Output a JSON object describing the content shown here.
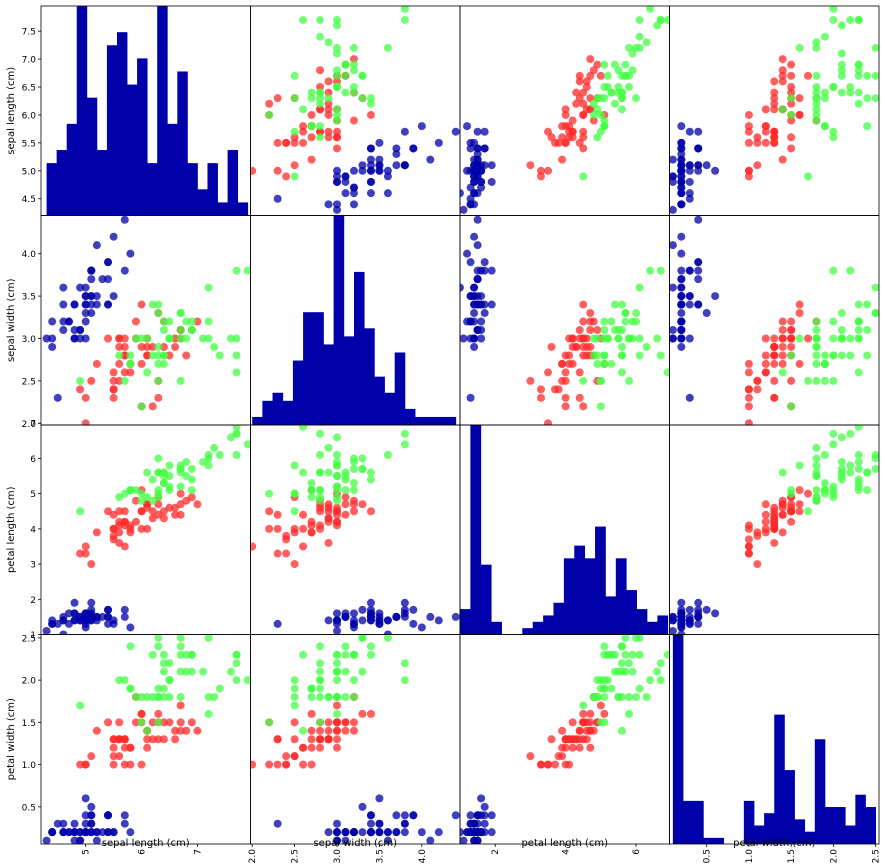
{
  "chart_data": {
    "type": "scatter",
    "title": "",
    "variables": [
      "sepal length (cm)",
      "sepal width (cm)",
      "petal length (cm)",
      "petal width (cm)"
    ],
    "class_colors": [
      "#0000aa",
      "#ff2a2a",
      "#44ff44"
    ],
    "hist_color": "#0000aa",
    "ranges": [
      [
        4.2,
        7.95
      ],
      [
        1.98,
        4.45
      ],
      [
        1.0,
        6.95
      ],
      [
        0.06,
        2.54
      ]
    ],
    "ticks": [
      [
        4.5,
        5.0,
        5.5,
        6.0,
        6.5,
        7.0,
        7.5
      ],
      [
        2.0,
        2.5,
        3.0,
        3.5,
        4.0
      ],
      [
        1,
        2,
        3,
        4,
        5,
        6,
        7
      ],
      [
        0.5,
        1.0,
        1.5,
        2.0,
        2.5
      ]
    ],
    "x_tick_labels": [
      [
        "5",
        "6",
        "7"
      ],
      [
        "2.0",
        "2.5",
        "3.0",
        "3.5",
        "4.0"
      ],
      [
        "2",
        "4",
        "6"
      ],
      [
        "0.5",
        "1.0",
        "1.5",
        "2.0",
        "2.5"
      ]
    ],
    "x_tick_values": [
      [
        5,
        6,
        7
      ],
      [
        2.0,
        2.5,
        3.0,
        3.5,
        4.0
      ],
      [
        2,
        4,
        6
      ],
      [
        0.5,
        1.0,
        1.5,
        2.0,
        2.5
      ]
    ],
    "y_tick_labels": [
      [
        "4.5",
        "5.0",
        "5.5",
        "6.0",
        "6.5",
        "7.0",
        "7.5"
      ],
      [
        "2.0",
        "2.5",
        "3.0",
        "3.5",
        "4.0"
      ],
      [
        "1",
        "2",
        "3",
        "4",
        "5",
        "6",
        "7"
      ],
      [
        "0.5",
        "1.0",
        "1.5",
        "2.0",
        "2.5"
      ]
    ],
    "rows": [
      [
        5.1,
        3.5,
        1.4,
        0.2,
        0
      ],
      [
        4.9,
        3.0,
        1.4,
        0.2,
        0
      ],
      [
        4.7,
        3.2,
        1.3,
        0.2,
        0
      ],
      [
        4.6,
        3.1,
        1.5,
        0.2,
        0
      ],
      [
        5.0,
        3.6,
        1.4,
        0.2,
        0
      ],
      [
        5.4,
        3.9,
        1.7,
        0.4,
        0
      ],
      [
        4.6,
        3.4,
        1.4,
        0.3,
        0
      ],
      [
        5.0,
        3.4,
        1.5,
        0.2,
        0
      ],
      [
        4.4,
        2.9,
        1.4,
        0.2,
        0
      ],
      [
        4.9,
        3.1,
        1.5,
        0.1,
        0
      ],
      [
        5.4,
        3.7,
        1.5,
        0.2,
        0
      ],
      [
        4.8,
        3.4,
        1.6,
        0.2,
        0
      ],
      [
        4.8,
        3.0,
        1.4,
        0.1,
        0
      ],
      [
        4.3,
        3.0,
        1.1,
        0.1,
        0
      ],
      [
        5.8,
        4.0,
        1.2,
        0.2,
        0
      ],
      [
        5.7,
        4.4,
        1.5,
        0.4,
        0
      ],
      [
        5.4,
        3.9,
        1.3,
        0.4,
        0
      ],
      [
        5.1,
        3.5,
        1.4,
        0.3,
        0
      ],
      [
        5.7,
        3.8,
        1.7,
        0.3,
        0
      ],
      [
        5.1,
        3.8,
        1.5,
        0.3,
        0
      ],
      [
        5.4,
        3.4,
        1.7,
        0.2,
        0
      ],
      [
        5.1,
        3.7,
        1.5,
        0.4,
        0
      ],
      [
        4.6,
        3.6,
        1.0,
        0.2,
        0
      ],
      [
        5.1,
        3.3,
        1.7,
        0.5,
        0
      ],
      [
        4.8,
        3.4,
        1.9,
        0.2,
        0
      ],
      [
        5.0,
        3.0,
        1.6,
        0.2,
        0
      ],
      [
        5.0,
        3.4,
        1.6,
        0.4,
        0
      ],
      [
        5.2,
        3.5,
        1.5,
        0.2,
        0
      ],
      [
        5.2,
        3.4,
        1.4,
        0.2,
        0
      ],
      [
        4.7,
        3.2,
        1.6,
        0.2,
        0
      ],
      [
        4.8,
        3.1,
        1.6,
        0.2,
        0
      ],
      [
        5.4,
        3.4,
        1.5,
        0.4,
        0
      ],
      [
        5.2,
        4.1,
        1.5,
        0.1,
        0
      ],
      [
        5.5,
        4.2,
        1.4,
        0.2,
        0
      ],
      [
        4.9,
        3.1,
        1.5,
        0.2,
        0
      ],
      [
        5.0,
        3.2,
        1.2,
        0.2,
        0
      ],
      [
        5.5,
        3.5,
        1.3,
        0.2,
        0
      ],
      [
        4.9,
        3.6,
        1.4,
        0.1,
        0
      ],
      [
        4.4,
        3.0,
        1.3,
        0.2,
        0
      ],
      [
        5.1,
        3.4,
        1.5,
        0.2,
        0
      ],
      [
        5.0,
        3.5,
        1.3,
        0.3,
        0
      ],
      [
        4.5,
        2.3,
        1.3,
        0.3,
        0
      ],
      [
        4.4,
        3.2,
        1.3,
        0.2,
        0
      ],
      [
        5.0,
        3.5,
        1.6,
        0.6,
        0
      ],
      [
        5.1,
        3.8,
        1.9,
        0.4,
        0
      ],
      [
        4.8,
        3.0,
        1.4,
        0.3,
        0
      ],
      [
        5.1,
        3.8,
        1.6,
        0.2,
        0
      ],
      [
        4.6,
        3.2,
        1.4,
        0.2,
        0
      ],
      [
        5.3,
        3.7,
        1.5,
        0.2,
        0
      ],
      [
        5.0,
        3.3,
        1.4,
        0.2,
        0
      ],
      [
        7.0,
        3.2,
        4.7,
        1.4,
        1
      ],
      [
        6.4,
        3.2,
        4.5,
        1.5,
        1
      ],
      [
        6.9,
        3.1,
        4.9,
        1.5,
        1
      ],
      [
        5.5,
        2.3,
        4.0,
        1.3,
        1
      ],
      [
        6.5,
        2.8,
        4.6,
        1.5,
        1
      ],
      [
        5.7,
        2.8,
        4.5,
        1.3,
        1
      ],
      [
        6.3,
        3.3,
        4.7,
        1.6,
        1
      ],
      [
        4.9,
        2.4,
        3.3,
        1.0,
        1
      ],
      [
        6.6,
        2.9,
        4.6,
        1.3,
        1
      ],
      [
        5.2,
        2.7,
        3.9,
        1.4,
        1
      ],
      [
        5.0,
        2.0,
        3.5,
        1.0,
        1
      ],
      [
        5.9,
        3.0,
        4.2,
        1.5,
        1
      ],
      [
        6.0,
        2.2,
        4.0,
        1.0,
        1
      ],
      [
        6.1,
        2.9,
        4.7,
        1.4,
        1
      ],
      [
        5.6,
        2.9,
        3.6,
        1.3,
        1
      ],
      [
        6.7,
        3.1,
        4.4,
        1.4,
        1
      ],
      [
        5.6,
        3.0,
        4.5,
        1.5,
        1
      ],
      [
        5.8,
        2.7,
        4.1,
        1.0,
        1
      ],
      [
        6.2,
        2.2,
        4.5,
        1.5,
        1
      ],
      [
        5.6,
        2.5,
        3.9,
        1.1,
        1
      ],
      [
        5.9,
        3.2,
        4.8,
        1.8,
        1
      ],
      [
        6.1,
        2.8,
        4.0,
        1.3,
        1
      ],
      [
        6.3,
        2.5,
        4.9,
        1.5,
        1
      ],
      [
        6.1,
        2.8,
        4.7,
        1.2,
        1
      ],
      [
        6.4,
        2.9,
        4.3,
        1.3,
        1
      ],
      [
        6.6,
        3.0,
        4.4,
        1.4,
        1
      ],
      [
        6.8,
        2.8,
        4.8,
        1.4,
        1
      ],
      [
        6.7,
        3.0,
        5.0,
        1.7,
        1
      ],
      [
        6.0,
        2.9,
        4.5,
        1.5,
        1
      ],
      [
        5.7,
        2.6,
        3.5,
        1.0,
        1
      ],
      [
        5.5,
        2.4,
        3.8,
        1.1,
        1
      ],
      [
        5.5,
        2.4,
        3.7,
        1.0,
        1
      ],
      [
        5.8,
        2.7,
        3.9,
        1.2,
        1
      ],
      [
        6.0,
        2.7,
        5.1,
        1.6,
        1
      ],
      [
        5.4,
        3.0,
        4.5,
        1.5,
        1
      ],
      [
        6.0,
        3.4,
        4.5,
        1.6,
        1
      ],
      [
        6.7,
        3.1,
        4.7,
        1.5,
        1
      ],
      [
        6.3,
        2.3,
        4.4,
        1.3,
        1
      ],
      [
        5.6,
        3.0,
        4.1,
        1.3,
        1
      ],
      [
        5.5,
        2.5,
        4.0,
        1.3,
        1
      ],
      [
        5.5,
        2.6,
        4.4,
        1.2,
        1
      ],
      [
        6.1,
        3.0,
        4.6,
        1.4,
        1
      ],
      [
        5.8,
        2.6,
        4.0,
        1.2,
        1
      ],
      [
        5.0,
        2.3,
        3.3,
        1.0,
        1
      ],
      [
        5.6,
        2.7,
        4.2,
        1.3,
        1
      ],
      [
        5.7,
        3.0,
        4.2,
        1.2,
        1
      ],
      [
        5.7,
        2.9,
        4.2,
        1.3,
        1
      ],
      [
        6.2,
        2.9,
        4.3,
        1.3,
        1
      ],
      [
        5.1,
        2.5,
        3.0,
        1.1,
        1
      ],
      [
        5.7,
        2.8,
        4.1,
        1.3,
        1
      ],
      [
        6.3,
        3.3,
        6.0,
        2.5,
        2
      ],
      [
        5.8,
        2.7,
        5.1,
        1.9,
        2
      ],
      [
        7.1,
        3.0,
        5.9,
        2.1,
        2
      ],
      [
        6.3,
        2.9,
        5.6,
        1.8,
        2
      ],
      [
        6.5,
        3.0,
        5.8,
        2.2,
        2
      ],
      [
        7.6,
        3.0,
        6.6,
        2.1,
        2
      ],
      [
        4.9,
        2.5,
        4.5,
        1.7,
        2
      ],
      [
        7.3,
        2.9,
        6.3,
        1.8,
        2
      ],
      [
        6.7,
        2.5,
        5.8,
        1.8,
        2
      ],
      [
        7.2,
        3.6,
        6.1,
        2.5,
        2
      ],
      [
        6.5,
        3.2,
        5.1,
        2.0,
        2
      ],
      [
        6.4,
        2.7,
        5.3,
        1.9,
        2
      ],
      [
        6.8,
        3.0,
        5.5,
        2.1,
        2
      ],
      [
        5.7,
        2.5,
        5.0,
        2.0,
        2
      ],
      [
        5.8,
        2.8,
        5.1,
        2.4,
        2
      ],
      [
        6.4,
        3.2,
        5.3,
        2.3,
        2
      ],
      [
        6.5,
        3.0,
        5.5,
        1.8,
        2
      ],
      [
        7.7,
        3.8,
        6.7,
        2.2,
        2
      ],
      [
        7.7,
        2.6,
        6.9,
        2.3,
        2
      ],
      [
        6.0,
        2.2,
        5.0,
        1.5,
        2
      ],
      [
        6.9,
        3.2,
        5.7,
        2.3,
        2
      ],
      [
        5.6,
        2.8,
        4.9,
        2.0,
        2
      ],
      [
        7.7,
        2.8,
        6.7,
        2.0,
        2
      ],
      [
        6.3,
        2.7,
        4.9,
        1.8,
        2
      ],
      [
        6.7,
        3.3,
        5.7,
        2.1,
        2
      ],
      [
        7.2,
        3.2,
        6.0,
        1.8,
        2
      ],
      [
        6.2,
        2.8,
        4.8,
        1.8,
        2
      ],
      [
        6.1,
        3.0,
        4.9,
        1.8,
        2
      ],
      [
        6.4,
        2.8,
        5.6,
        2.1,
        2
      ],
      [
        7.2,
        3.0,
        5.8,
        1.6,
        2
      ],
      [
        7.4,
        2.8,
        6.1,
        1.9,
        2
      ],
      [
        7.9,
        3.8,
        6.4,
        2.0,
        2
      ],
      [
        6.4,
        2.8,
        5.6,
        2.2,
        2
      ],
      [
        6.3,
        2.8,
        5.1,
        1.5,
        2
      ],
      [
        6.1,
        2.6,
        5.6,
        1.4,
        2
      ],
      [
        7.7,
        3.0,
        6.1,
        2.3,
        2
      ],
      [
        6.3,
        3.4,
        5.6,
        2.4,
        2
      ],
      [
        6.4,
        3.1,
        5.5,
        1.8,
        2
      ],
      [
        6.0,
        3.0,
        4.8,
        1.8,
        2
      ],
      [
        6.9,
        3.1,
        5.4,
        2.1,
        2
      ],
      [
        6.7,
        3.1,
        5.6,
        2.4,
        2
      ],
      [
        6.9,
        3.1,
        5.1,
        2.3,
        2
      ],
      [
        5.8,
        2.7,
        5.1,
        1.9,
        2
      ],
      [
        6.8,
        3.2,
        5.9,
        2.3,
        2
      ],
      [
        6.7,
        3.3,
        5.7,
        2.5,
        2
      ],
      [
        6.7,
        3.0,
        5.2,
        2.3,
        2
      ],
      [
        6.3,
        2.5,
        5.0,
        1.9,
        2
      ],
      [
        6.5,
        3.0,
        5.2,
        2.0,
        2
      ],
      [
        6.2,
        3.4,
        5.4,
        2.3,
        2
      ],
      [
        5.9,
        3.0,
        5.1,
        1.8,
        2
      ]
    ]
  }
}
